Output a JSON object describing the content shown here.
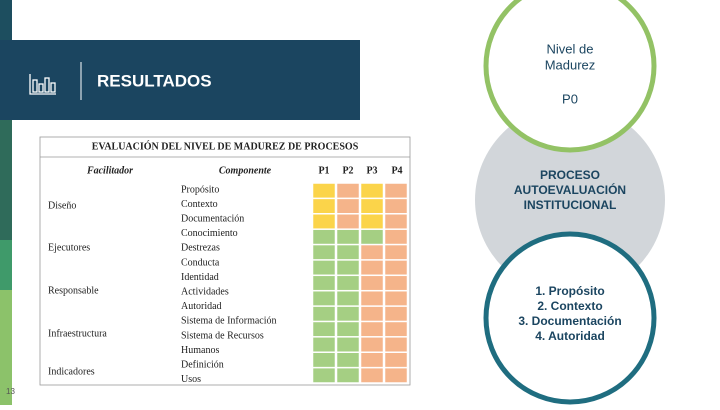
{
  "header": {
    "title": "RESULTADOS"
  },
  "page_number": "13",
  "table": {
    "title": "EVALUACIÓN DEL NIVEL DE MADUREZ DE PROCESOS",
    "columns": [
      "Facilitador",
      "Componente",
      "P1",
      "P2",
      "P3",
      "P4"
    ],
    "facilitators": [
      "Diseño",
      "Ejecutores",
      "Responsable",
      "Infraestructura",
      "Indicadores"
    ],
    "components": [
      "Propósito",
      "Contexto",
      "Documentación",
      "Conocimiento",
      "Destrezas",
      "Conducta",
      "Identidad",
      "Actividades",
      "Autoridad",
      "Sistema de Información",
      "Sistema de Recursos",
      "Humanos",
      "Definición",
      "Usos"
    ],
    "cell_colors": [
      [
        "#fbd44a",
        "#f5b48a",
        "#fbd44a",
        "#f5b48a"
      ],
      [
        "#fbd44a",
        "#f5b48a",
        "#fbd44a",
        "#f5b48a"
      ],
      [
        "#fbd44a",
        "#f5b48a",
        "#fbd44a",
        "#f5b48a"
      ],
      [
        "#a5cf83",
        "#a5cf83",
        "#a5cf83",
        "#f5b48a"
      ],
      [
        "#a5cf83",
        "#a5cf83",
        "#f5b48a",
        "#f5b48a"
      ],
      [
        "#a5cf83",
        "#a5cf83",
        "#f5b48a",
        "#f5b48a"
      ],
      [
        "#a5cf83",
        "#a5cf83",
        "#f5b48a",
        "#f5b48a"
      ],
      [
        "#a5cf83",
        "#a5cf83",
        "#f5b48a",
        "#f5b48a"
      ],
      [
        "#a5cf83",
        "#a5cf83",
        "#f5b48a",
        "#f5b48a"
      ],
      [
        "#a5cf83",
        "#a5cf83",
        "#f5b48a",
        "#f5b48a"
      ],
      [
        "#a5cf83",
        "#a5cf83",
        "#f5b48a",
        "#f5b48a"
      ],
      [
        "#a5cf83",
        "#a5cf83",
        "#f5b48a",
        "#f5b48a"
      ],
      [
        "#a5cf83",
        "#a5cf83",
        "#f5b48a",
        "#f5b48a"
      ]
    ]
  },
  "circles": {
    "top": {
      "lines": [
        "Nivel de",
        "Madurez"
      ],
      "level": "P0"
    },
    "middle": {
      "lines": [
        "PROCESO",
        "AUTOEVALUACIÓN",
        "INSTITUCIONAL"
      ]
    },
    "bottom": {
      "items": [
        "1.   Propósito",
        "2.   Contexto",
        "3.   Documentación",
        "4.   Autoridad"
      ]
    }
  }
}
